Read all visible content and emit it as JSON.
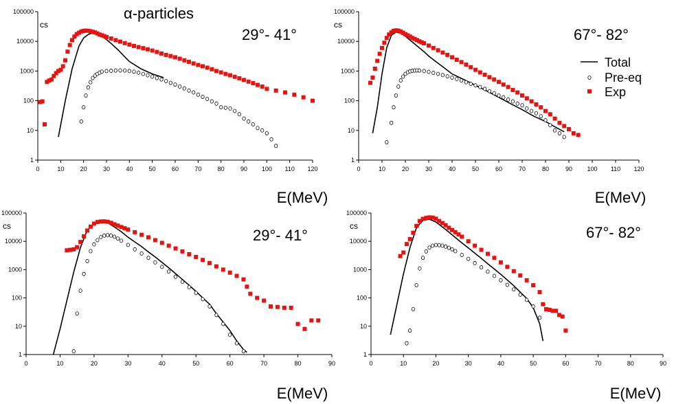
{
  "figure_title": "α-particles",
  "legend": {
    "total": "Total",
    "preeq": "Pre-eq",
    "exp": "Exp"
  },
  "colors": {
    "exp": "#e8130f",
    "theory": "#000000",
    "preeq_marker": "#000000"
  },
  "chart_data": [
    {
      "type": "scatter",
      "ylabel": "cs",
      "xlabel": "E(MeV)",
      "annotation": "29°- 41°",
      "xlim": [
        0,
        120
      ],
      "xticks": [
        0,
        10,
        20,
        30,
        40,
        50,
        60,
        70,
        80,
        90,
        100,
        110,
        120
      ],
      "ylim": [
        1,
        100000
      ],
      "yscale": "log",
      "yticks": [
        "1",
        "10",
        "100",
        "1000",
        "10000",
        "100000"
      ],
      "series": [
        {
          "role": "total",
          "style": "line",
          "x": [
            9,
            12,
            15,
            18,
            20,
            22,
            24,
            26,
            28,
            30,
            32,
            35,
            38,
            40,
            45,
            50,
            55
          ],
          "y": [
            6,
            100,
            1200,
            7000,
            13000,
            17000,
            19500,
            18000,
            15000,
            11500,
            8500,
            5200,
            3000,
            2100,
            1200,
            800,
            600
          ]
        },
        {
          "role": "preeq",
          "style": "open-circle",
          "x": [
            19,
            20,
            21,
            22,
            23,
            24,
            25,
            26,
            27,
            28,
            30,
            32,
            34,
            36,
            38,
            40,
            42,
            44,
            46,
            48,
            50,
            52,
            54,
            56,
            58,
            60,
            62,
            64,
            66,
            68,
            70,
            72,
            74,
            76,
            78,
            80,
            82,
            84,
            86,
            88,
            90,
            92,
            94,
            96,
            98,
            100,
            102,
            104
          ],
          "y": [
            20,
            60,
            150,
            280,
            420,
            580,
            700,
            800,
            880,
            950,
            1000,
            1020,
            1040,
            1050,
            1040,
            1000,
            950,
            880,
            800,
            720,
            650,
            580,
            520,
            460,
            400,
            350,
            300,
            260,
            220,
            190,
            160,
            135,
            115,
            95,
            80,
            60,
            58,
            55,
            45,
            35,
            25,
            20,
            16,
            12,
            10,
            8,
            5,
            3
          ]
        },
        {
          "role": "exp",
          "style": "filled-square",
          "x": [
            1,
            2,
            3,
            4,
            5,
            6,
            7,
            8,
            9,
            10,
            11,
            12,
            13,
            14,
            15,
            16,
            17,
            18,
            19,
            20,
            21,
            22,
            23,
            24,
            25,
            26,
            27,
            28,
            29,
            30,
            32,
            34,
            36,
            38,
            40,
            42,
            44,
            46,
            48,
            50,
            52,
            54,
            56,
            58,
            60,
            62,
            64,
            66,
            68,
            70,
            72,
            74,
            76,
            78,
            80,
            82,
            84,
            86,
            88,
            90,
            92,
            94,
            96,
            98,
            100,
            104,
            108,
            112,
            116,
            120
          ],
          "y": [
            90,
            95,
            16,
            430,
            480,
            520,
            680,
            850,
            1000,
            1100,
            1450,
            2300,
            4500,
            7500,
            11000,
            14500,
            17500,
            19500,
            21500,
            22500,
            23000,
            22800,
            22000,
            21000,
            20000,
            18500,
            17000,
            16000,
            15000,
            14000,
            12500,
            11000,
            9800,
            8700,
            7800,
            7000,
            6400,
            5900,
            5400,
            4900,
            4400,
            3900,
            3500,
            3200,
            2900,
            2600,
            2300,
            2050,
            1800,
            1600,
            1450,
            1300,
            1150,
            1000,
            900,
            800,
            720,
            640,
            570,
            500,
            440,
            390,
            340,
            300,
            250,
            220,
            190,
            160,
            130,
            100
          ]
        }
      ]
    },
    {
      "type": "scatter",
      "ylabel": "cs",
      "xlabel": "E(MeV)",
      "annotation": "67°- 82°",
      "xlim": [
        0,
        120
      ],
      "xticks": [
        0,
        10,
        20,
        30,
        40,
        50,
        60,
        70,
        80,
        90,
        100,
        110,
        120
      ],
      "ylim": [
        1,
        100000
      ],
      "yscale": "log",
      "yticks": [
        "1",
        "10",
        "100",
        "1000",
        "10000",
        "100000"
      ],
      "series": [
        {
          "role": "total",
          "style": "line",
          "x": [
            6,
            8,
            10,
            12,
            14,
            16,
            18,
            20,
            22,
            25,
            28,
            30,
            33,
            36,
            40,
            45,
            50,
            55,
            60,
            65,
            70,
            75,
            80,
            85,
            88
          ],
          "y": [
            8,
            60,
            800,
            6000,
            16000,
            20500,
            19000,
            15000,
            11000,
            7000,
            4500,
            3200,
            2100,
            1400,
            800,
            520,
            330,
            210,
            130,
            80,
            50,
            30,
            20,
            12,
            9
          ]
        },
        {
          "role": "preeq",
          "style": "open-circle",
          "x": [
            12,
            14,
            15,
            16,
            17,
            18,
            19,
            20,
            21,
            22,
            23,
            24,
            25,
            26,
            28,
            30,
            32,
            34,
            36,
            38,
            40,
            42,
            44,
            46,
            48,
            50,
            52,
            54,
            56,
            58,
            60,
            62,
            64,
            66,
            68,
            70,
            72,
            74,
            76,
            78,
            80,
            82,
            84,
            86,
            88
          ],
          "y": [
            4,
            18,
            60,
            150,
            300,
            480,
            650,
            800,
            900,
            980,
            1020,
            1040,
            1050,
            1040,
            1000,
            940,
            870,
            800,
            730,
            660,
            600,
            540,
            480,
            420,
            370,
            330,
            290,
            250,
            210,
            180,
            150,
            130,
            110,
            95,
            80,
            70,
            55,
            45,
            38,
            30,
            22,
            15,
            10,
            8,
            6
          ]
        },
        {
          "role": "exp",
          "style": "filled-square",
          "x": [
            5,
            6,
            7,
            8,
            9,
            10,
            11,
            12,
            13,
            14,
            15,
            16,
            17,
            18,
            19,
            20,
            21,
            22,
            23,
            24,
            25,
            26,
            27,
            28,
            30,
            32,
            34,
            36,
            38,
            40,
            42,
            44,
            46,
            48,
            50,
            52,
            54,
            56,
            58,
            60,
            62,
            64,
            66,
            68,
            70,
            72,
            74,
            76,
            78,
            80,
            82,
            84,
            86,
            88,
            90,
            92,
            94
          ],
          "y": [
            400,
            600,
            1200,
            2200,
            3800,
            6000,
            9000,
            13000,
            17000,
            20000,
            22500,
            23500,
            23000,
            21500,
            19500,
            17500,
            16000,
            14500,
            13000,
            12000,
            11000,
            10000,
            9300,
            8600,
            7200,
            6000,
            5000,
            4200,
            3500,
            2900,
            2400,
            2000,
            1650,
            1350,
            1100,
            900,
            750,
            620,
            520,
            430,
            350,
            290,
            230,
            190,
            150,
            120,
            95,
            75,
            60,
            45,
            35,
            25,
            18,
            14,
            11,
            8,
            7
          ]
        }
      ]
    },
    {
      "type": "scatter",
      "ylabel": "cs",
      "xlabel": "E(MeV)",
      "annotation": "29°- 41°",
      "xlim": [
        0,
        90
      ],
      "xticks": [
        0,
        10,
        20,
        30,
        40,
        50,
        60,
        70,
        80,
        90
      ],
      "ylim": [
        1,
        100000
      ],
      "yscale": "log",
      "yticks": [
        "1",
        "10",
        "100",
        "1000",
        "10000",
        "100000"
      ],
      "series": [
        {
          "role": "total",
          "style": "line",
          "x": [
            8,
            10,
            12,
            14,
            16,
            18,
            20,
            22,
            24,
            26,
            28,
            30,
            32,
            34,
            36,
            38,
            40,
            42,
            44,
            46,
            48,
            50,
            52,
            54,
            56,
            58,
            60,
            62,
            64,
            65
          ],
          "y": [
            1,
            8,
            80,
            800,
            6000,
            25000,
            42000,
            50000,
            46000,
            32000,
            22000,
            14000,
            9500,
            6500,
            4200,
            2800,
            1800,
            1150,
            720,
            450,
            280,
            170,
            100,
            60,
            28,
            14,
            7,
            3,
            1.5,
            1.2
          ]
        },
        {
          "role": "preeq",
          "style": "open-circle",
          "x": [
            14,
            15,
            16,
            17,
            18,
            19,
            20,
            21,
            22,
            23,
            24,
            25,
            26,
            27,
            28,
            30,
            32,
            34,
            36,
            38,
            40,
            42,
            44,
            46,
            48,
            50,
            52,
            54,
            56,
            58,
            60,
            62,
            64
          ],
          "y": [
            1.3,
            28,
            180,
            700,
            2000,
            4500,
            7800,
            11000,
            14000,
            16000,
            16500,
            16000,
            14500,
            12500,
            10500,
            7500,
            5200,
            3700,
            2600,
            1800,
            1250,
            850,
            560,
            370,
            240,
            150,
            90,
            50,
            25,
            12,
            5,
            2.5,
            1.3
          ]
        },
        {
          "role": "exp",
          "style": "filled-square",
          "x": [
            12,
            13,
            14,
            15,
            16,
            17,
            18,
            19,
            20,
            21,
            22,
            23,
            24,
            25,
            26,
            27,
            28,
            29,
            30,
            32,
            34,
            36,
            38,
            40,
            42,
            44,
            46,
            48,
            50,
            52,
            54,
            56,
            58,
            60,
            62,
            64,
            65,
            66,
            68,
            70,
            72,
            74,
            76,
            78,
            80,
            82,
            84,
            86
          ],
          "y": [
            4800,
            5000,
            5200,
            6200,
            9500,
            15000,
            24000,
            33000,
            42000,
            48000,
            50000,
            50500,
            49000,
            45000,
            40000,
            36000,
            32000,
            29000,
            26000,
            21000,
            17000,
            13800,
            11000,
            8800,
            7000,
            5600,
            4400,
            3500,
            2800,
            2200,
            1700,
            1300,
            1000,
            780,
            600,
            450,
            250,
            140,
            100,
            80,
            50,
            48,
            45,
            45,
            12,
            8,
            16,
            16
          ]
        }
      ]
    },
    {
      "type": "scatter",
      "ylabel": "cs",
      "xlabel": "E(MeV)",
      "annotation": "67°- 82°",
      "xlim": [
        0,
        90
      ],
      "xticks": [
        0,
        10,
        20,
        30,
        40,
        50,
        60,
        70,
        80,
        90
      ],
      "ylim": [
        1,
        100000
      ],
      "yscale": "log",
      "yticks": [
        "1",
        "10",
        "100",
        "1000",
        "10000",
        "100000"
      ],
      "series": [
        {
          "role": "total",
          "style": "line",
          "x": [
            6,
            8,
            10,
            12,
            14,
            16,
            18,
            20,
            22,
            24,
            26,
            28,
            30,
            32,
            34,
            36,
            38,
            40,
            42,
            44,
            46,
            48,
            50,
            52,
            53
          ],
          "y": [
            5,
            60,
            700,
            6000,
            30000,
            55000,
            60000,
            48000,
            32000,
            21000,
            13500,
            8800,
            5800,
            3800,
            2500,
            1600,
            1050,
            680,
            430,
            270,
            160,
            95,
            45,
            12,
            3
          ]
        },
        {
          "role": "preeq",
          "style": "open-circle",
          "x": [
            11,
            12,
            13,
            14,
            15,
            16,
            17,
            18,
            19,
            20,
            21,
            22,
            23,
            24,
            25,
            26,
            28,
            30,
            32,
            34,
            36,
            38,
            40,
            42,
            44,
            46,
            48,
            50,
            52
          ],
          "y": [
            2.5,
            7,
            40,
            280,
            1100,
            2600,
            4400,
            6000,
            7000,
            7400,
            7300,
            7000,
            6500,
            5900,
            5200,
            4500,
            3300,
            2400,
            1700,
            1200,
            850,
            600,
            420,
            290,
            200,
            130,
            85,
            50,
            20
          ]
        },
        {
          "role": "exp",
          "style": "filled-square",
          "x": [
            9,
            10,
            11,
            12,
            13,
            14,
            15,
            16,
            17,
            18,
            19,
            20,
            21,
            22,
            23,
            24,
            25,
            26,
            27,
            28,
            30,
            32,
            34,
            36,
            38,
            40,
            42,
            44,
            46,
            48,
            50,
            52,
            53,
            54,
            55,
            56,
            57,
            58,
            59,
            60
          ],
          "y": [
            3000,
            4000,
            8000,
            12000,
            20000,
            35000,
            52000,
            62000,
            67000,
            70000,
            69000,
            63000,
            52000,
            44000,
            37000,
            30000,
            25000,
            21000,
            17500,
            14500,
            10000,
            7000,
            5000,
            3600,
            2600,
            1800,
            1250,
            880,
            620,
            420,
            280,
            160,
            60,
            40,
            38,
            35,
            35,
            25,
            22,
            7
          ]
        }
      ]
    }
  ]
}
